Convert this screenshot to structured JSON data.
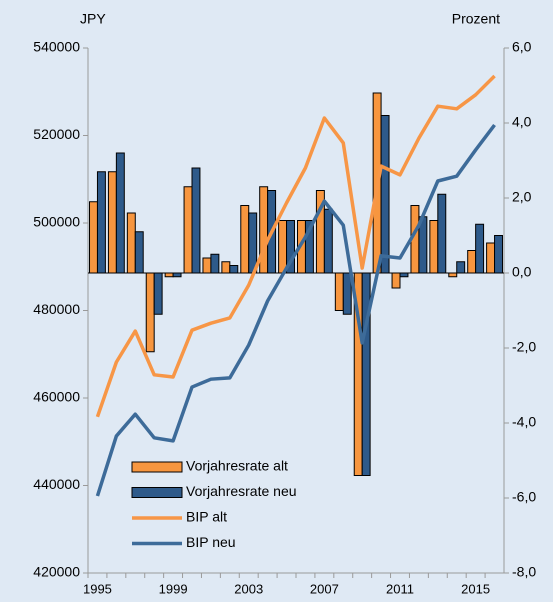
{
  "chart_data": {
    "type": "combo",
    "y_label": "JPY",
    "y2_label": "Prozent",
    "categories": [
      "1995",
      null,
      null,
      null,
      "1999",
      null,
      null,
      null,
      "2003",
      null,
      null,
      null,
      "2007",
      null,
      null,
      null,
      "2011",
      null,
      null,
      null,
      "2015",
      null
    ],
    "series": [
      {
        "name": "Vorjahresrate alt",
        "type": "bar",
        "axis": "y2",
        "color": "#f7963f",
        "values": [
          1.9,
          2.7,
          1.6,
          -2.1,
          -0.1,
          2.3,
          0.4,
          0.3,
          1.8,
          2.3,
          1.4,
          1.4,
          2.2,
          -1.0,
          -5.4,
          4.8,
          -0.4,
          1.8,
          1.4,
          -0.1,
          0.6,
          0.8
        ]
      },
      {
        "name": "Vorjahresrate neu",
        "type": "bar",
        "axis": "y2",
        "color": "#2e5a8a",
        "values": [
          2.7,
          3.2,
          1.1,
          -1.1,
          -0.1,
          2.8,
          0.5,
          0.2,
          1.6,
          2.2,
          1.4,
          1.4,
          1.7,
          -1.1,
          -5.4,
          4.2,
          -0.1,
          1.5,
          2.1,
          0.3,
          1.3,
          1.0
        ]
      },
      {
        "name": "BIP alt",
        "type": "line",
        "color": "#f79646",
        "values": [
          455700,
          468200,
          475300,
          465300,
          464800,
          475500,
          477100,
          478300,
          485800,
          496100,
          504600,
          512600,
          524000,
          518300,
          489700,
          513000,
          511000,
          519400,
          526700,
          526100,
          529300,
          533600
        ]
      },
      {
        "name": "BIP neu",
        "type": "line",
        "color": "#3d6b99",
        "values": [
          437600,
          451300,
          456300,
          450900,
          450200,
          462500,
          464300,
          464600,
          472100,
          482200,
          489700,
          496800,
          505000,
          499500,
          472600,
          492500,
          492000,
          499500,
          509600,
          510700,
          516700,
          522400
        ]
      }
    ],
    "ylim": [
      420000,
      540000
    ],
    "yticks": [
      420000,
      440000,
      460000,
      480000,
      500000,
      520000,
      540000
    ],
    "y2lim": [
      -8,
      6
    ],
    "y2ticks": [
      {
        "value": -8,
        "label": "-8,0"
      },
      {
        "value": -6,
        "label": "-6,0"
      },
      {
        "value": -4,
        "label": "-4,0"
      },
      {
        "value": -2,
        "label": "-2,0"
      },
      {
        "value": 0,
        "label": "0,0"
      },
      {
        "value": 2,
        "label": "2,0"
      },
      {
        "value": 4,
        "label": "4,0"
      },
      {
        "value": 6,
        "label": "6,0"
      }
    ],
    "grid": false
  }
}
